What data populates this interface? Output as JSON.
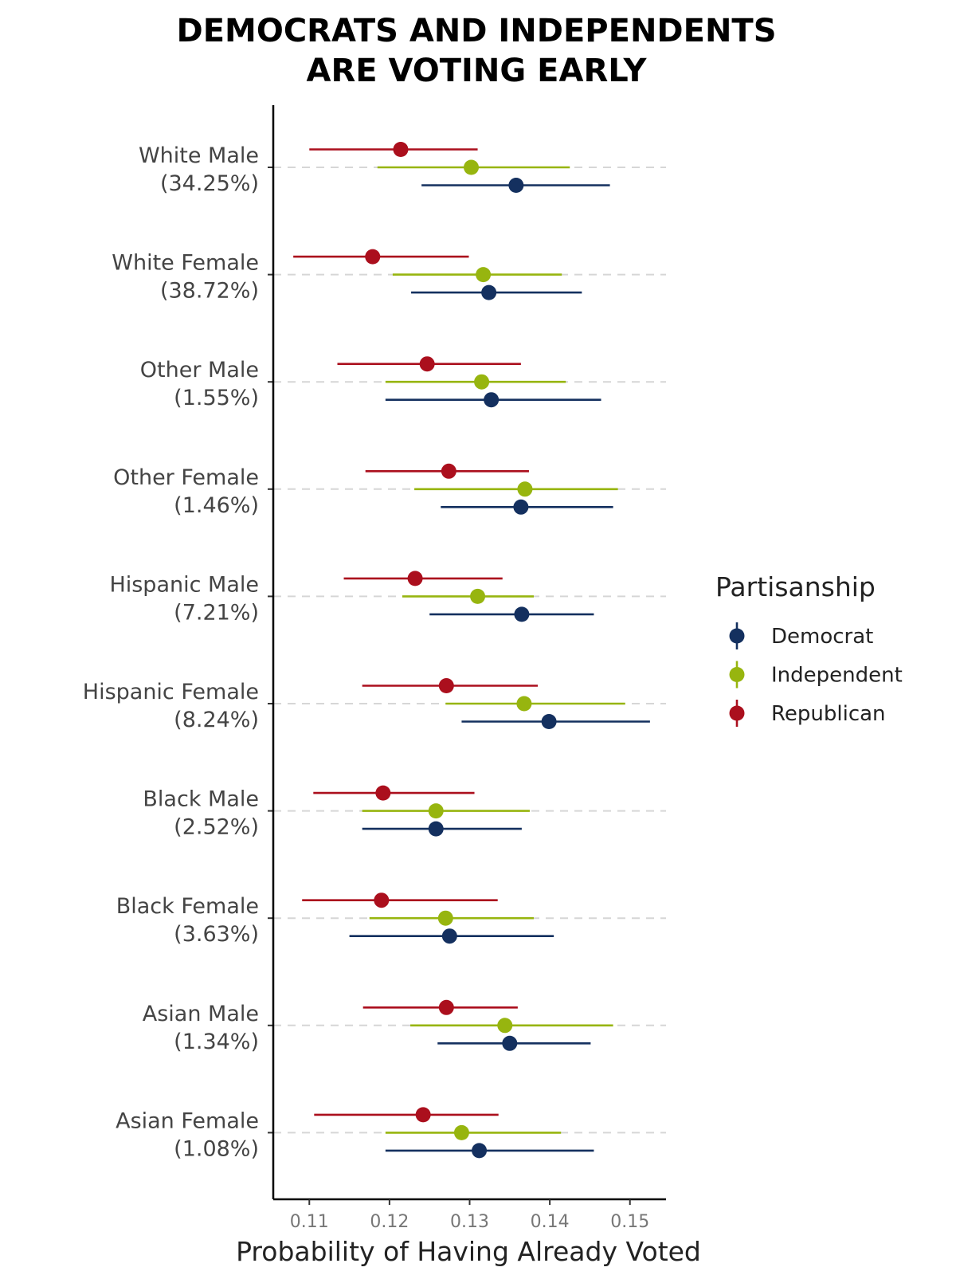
{
  "chart_data": {
    "type": "scatter",
    "subtype": "dot-and-whisker",
    "title_lines": [
      "DEMOCRATS AND INDEPENDENTS",
      "ARE VOTING EARLY"
    ],
    "xlabel": "Probability of Having Already Voted",
    "ylabel": "",
    "xlim": [
      0.1055,
      0.1545
    ],
    "x_ticks": [
      0.11,
      0.12,
      0.13,
      0.14,
      0.15
    ],
    "x_tick_labels": [
      "0.11",
      "0.12",
      "0.13",
      "0.14",
      "0.15"
    ],
    "grid": "dashed horizontal lines at each category",
    "legend": {
      "title": "Partisanship",
      "position": "right"
    },
    "colors": {
      "Democrat": "#14305f",
      "Independent": "#97b50f",
      "Republican": "#ab0f1d"
    },
    "categories": [
      {
        "line1": "White Male",
        "line2": "(34.25%)"
      },
      {
        "line1": "White Female",
        "line2": "(38.72%)"
      },
      {
        "line1": "Other Male",
        "line2": "(1.55%)"
      },
      {
        "line1": "Other Female",
        "line2": "(1.46%)"
      },
      {
        "line1": "Hispanic Male",
        "line2": "(7.21%)"
      },
      {
        "line1": "Hispanic Female",
        "line2": "(8.24%)"
      },
      {
        "line1": "Black Male",
        "line2": "(2.52%)"
      },
      {
        "line1": "Black Female",
        "line2": "(3.63%)"
      },
      {
        "line1": "Asian Male",
        "line2": "(1.34%)"
      },
      {
        "line1": "Asian Female",
        "line2": "(1.08%)"
      }
    ],
    "series": [
      {
        "name": "Republican",
        "estimate": [
          0.1214,
          0.1179,
          0.1247,
          0.1274,
          0.1232,
          0.1271,
          0.1192,
          0.119,
          0.1271,
          0.1242
        ],
        "lower": [
          0.11,
          0.108,
          0.1135,
          0.117,
          0.1143,
          0.1166,
          0.1105,
          0.1091,
          0.1167,
          0.1106
        ],
        "upper": [
          0.131,
          0.1299,
          0.1364,
          0.1374,
          0.1341,
          0.1385,
          0.1306,
          0.1335,
          0.136,
          0.1336
        ]
      },
      {
        "name": "Independent",
        "estimate": [
          0.1302,
          0.1317,
          0.1315,
          0.1369,
          0.131,
          0.1368,
          0.1258,
          0.127,
          0.1344,
          0.129
        ],
        "lower": [
          0.1185,
          0.1204,
          0.1195,
          0.1231,
          0.1216,
          0.127,
          0.1166,
          0.1175,
          0.1226,
          0.1195
        ],
        "upper": [
          0.1425,
          0.1415,
          0.142,
          0.1485,
          0.138,
          0.1494,
          0.1375,
          0.138,
          0.1479,
          0.1414
        ]
      },
      {
        "name": "Democrat",
        "estimate": [
          0.1358,
          0.1324,
          0.1327,
          0.1364,
          0.1365,
          0.1399,
          0.1258,
          0.1275,
          0.135,
          0.1312
        ],
        "lower": [
          0.124,
          0.1227,
          0.1195,
          0.1264,
          0.125,
          0.129,
          0.1166,
          0.115,
          0.126,
          0.1195
        ],
        "upper": [
          0.1475,
          0.144,
          0.1464,
          0.1479,
          0.1455,
          0.1525,
          0.1365,
          0.1405,
          0.1451,
          0.1455
        ]
      }
    ]
  }
}
